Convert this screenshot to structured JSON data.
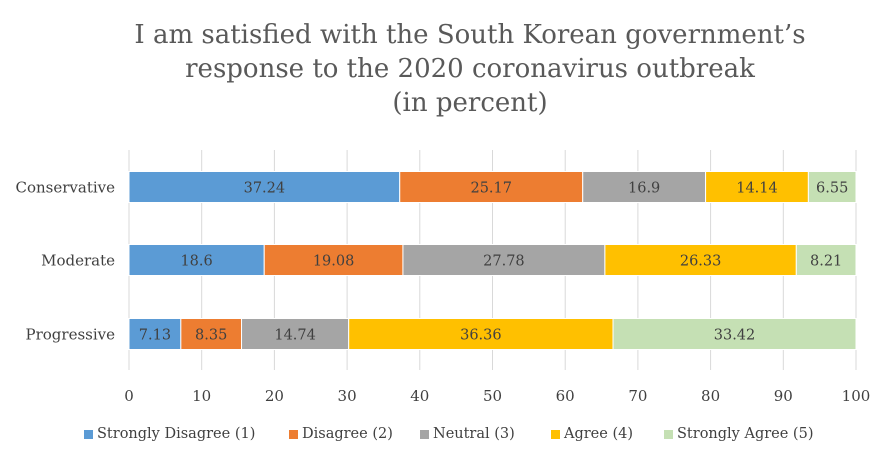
{
  "chart_data": {
    "type": "bar",
    "orientation": "horizontal",
    "stacked": true,
    "title_lines": [
      "I am satisfied with the South Korean government’s",
      "response to the 2020 coronavirus outbreak",
      "(in percent)"
    ],
    "categories": [
      "Conservative",
      "Moderate",
      "Progressive"
    ],
    "series": [
      {
        "name": "Strongly Disagree (1)",
        "color": "#5B9BD5",
        "values": [
          "37.24",
          "18.6",
          "7.13"
        ]
      },
      {
        "name": "Disagree (2)",
        "color": "#ED7D31",
        "values": [
          "25.17",
          "19.08",
          "8.35"
        ]
      },
      {
        "name": "Neutral (3)",
        "color": "#A5A5A5",
        "values": [
          "16.9",
          "27.78",
          "14.74"
        ]
      },
      {
        "name": "Agree (4)",
        "color": "#FFC000",
        "values": [
          "14.14",
          "26.33",
          "36.36"
        ]
      },
      {
        "name": "Strongly Agree (5)",
        "color": "#C5E0B4",
        "values": [
          "6.55",
          "8.21",
          "33.42"
        ]
      }
    ],
    "x_ticks": [
      "0",
      "10",
      "20",
      "30",
      "40",
      "50",
      "60",
      "70",
      "80",
      "90",
      "100"
    ],
    "xlim": [
      0,
      100
    ],
    "grid": true,
    "legend_position": "bottom"
  }
}
